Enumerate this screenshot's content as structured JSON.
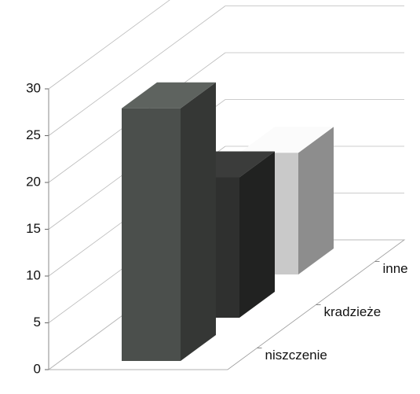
{
  "chart_data": {
    "type": "bar3d",
    "categories": [
      "niszczenie",
      "kradzieże",
      "inne"
    ],
    "values": [
      27,
      15,
      13
    ],
    "colors": [
      "#4b4f4c",
      "#2f302f",
      "#c9c9c9"
    ],
    "ylim": [
      0,
      30
    ],
    "yticks": [
      0,
      5,
      10,
      15,
      20,
      25,
      30
    ],
    "grid": true
  }
}
